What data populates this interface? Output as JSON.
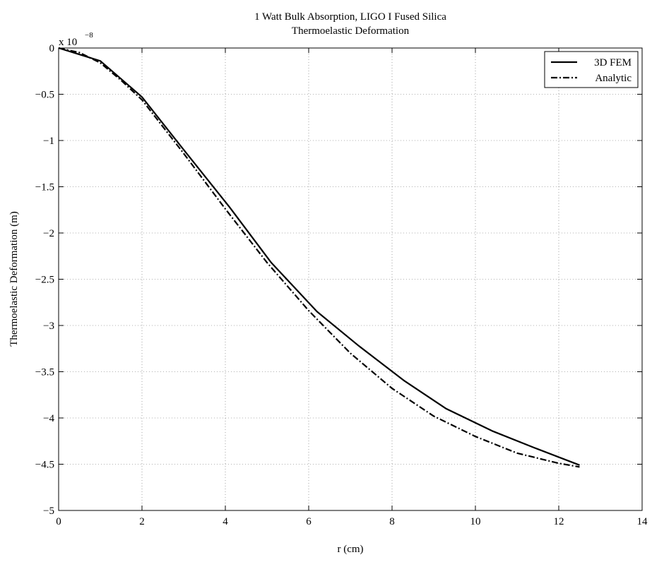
{
  "chart_data": {
    "type": "line",
    "title": "1 Watt Bulk Absorption, LIGO I Fused Silica",
    "subtitle": "Thermoelastic Deformation",
    "xlabel": "r (cm)",
    "ylabel": "Thermoelastic Deformation (m)",
    "y_exponent_label": "x 10",
    "y_exponent_power": "−8",
    "xlim": [
      0,
      14
    ],
    "ylim": [
      -5,
      0
    ],
    "x_ticks": [
      0,
      2,
      4,
      6,
      8,
      10,
      12,
      14
    ],
    "x_tick_labels": [
      "0",
      "2",
      "4",
      "6",
      "8",
      "10",
      "12",
      "14"
    ],
    "y_ticks": [
      0,
      -0.5,
      -1,
      -1.5,
      -2,
      -2.5,
      -3,
      -3.5,
      -4,
      -4.5,
      -5
    ],
    "y_tick_labels": [
      "0",
      "−0.5",
      "−1",
      "−1.5",
      "−2",
      "−2.5",
      "−3",
      "−3.5",
      "−4",
      "−4.5",
      "−5"
    ],
    "grid": true,
    "legend_position": "top-right",
    "series": [
      {
        "name": "3D FEM",
        "style": "solid",
        "color": "#000000",
        "x": [
          0,
          1.0,
          2.0,
          3.0,
          4.1,
          5.1,
          6.2,
          7.2,
          8.3,
          9.3,
          10.4,
          11.4,
          12.5
        ],
        "y": [
          0,
          -0.14,
          -0.53,
          -1.1,
          -1.72,
          -2.32,
          -2.85,
          -3.22,
          -3.6,
          -3.9,
          -4.14,
          -4.32,
          -4.51
        ]
      },
      {
        "name": "Analytic",
        "style": "dashdot",
        "color": "#000000",
        "x": [
          0,
          0.5,
          1.0,
          1.5,
          2.0,
          3.0,
          4.0,
          5.0,
          6.0,
          7.0,
          8.0,
          9.0,
          10.0,
          11.0,
          12.0,
          12.5
        ],
        "y": [
          0,
          -0.05,
          -0.16,
          -0.35,
          -0.56,
          -1.14,
          -1.74,
          -2.32,
          -2.84,
          -3.3,
          -3.68,
          -3.98,
          -4.2,
          -4.38,
          -4.49,
          -4.53
        ]
      }
    ]
  }
}
